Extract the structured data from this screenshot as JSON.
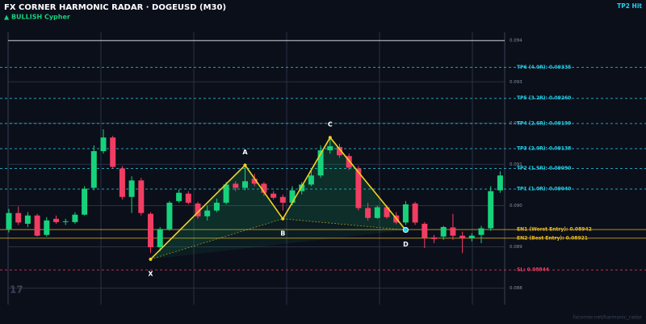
{
  "chart_data": {
    "type": "candlestick",
    "title": "FX CORNER HARMONIC RADAR  ·  DOGEUSD (M30)",
    "subtitle": "▲ BULLISH  Cypher",
    "status": "TP2 Hit",
    "watermark": "17",
    "footer": "fxcorner.net/harmonic_radar",
    "up_color": "#17d27c",
    "down_color": "#f23d63",
    "ohlc": [
      [
        0.08943,
        0.08992,
        0.08935,
        0.08982
      ],
      [
        0.08982,
        0.08998,
        0.08953,
        0.08959
      ],
      [
        0.08956,
        0.08984,
        0.08948,
        0.08976
      ],
      [
        0.08976,
        0.0898,
        0.08925,
        0.08927
      ],
      [
        0.08929,
        0.08972,
        0.08925,
        0.08964
      ],
      [
        0.08968,
        0.08976,
        0.08956,
        0.0896
      ],
      [
        0.0896,
        0.08968,
        0.08953,
        0.08962
      ],
      [
        0.0896,
        0.08984,
        0.08956,
        0.08978
      ],
      [
        0.08978,
        0.09047,
        0.08976,
        0.09041
      ],
      [
        0.09043,
        0.09146,
        0.09037,
        0.09132
      ],
      [
        0.09132,
        0.09185,
        0.09126,
        0.09165
      ],
      [
        0.09165,
        0.09169,
        0.0909,
        0.09094
      ],
      [
        0.0909,
        0.09096,
        0.09015,
        0.09021
      ],
      [
        0.09021,
        0.09071,
        0.08982,
        0.09061
      ],
      [
        0.09061,
        0.09067,
        0.08976,
        0.08982
      ],
      [
        0.0898,
        0.08984,
        0.08885,
        0.08899
      ],
      [
        0.08899,
        0.08948,
        0.08889,
        0.08943
      ],
      [
        0.08943,
        0.09011,
        0.08939,
        0.09007
      ],
      [
        0.09011,
        0.09039,
        0.09007,
        0.09031
      ],
      [
        0.09029,
        0.09035,
        0.09003,
        0.09007
      ],
      [
        0.09005,
        0.09009,
        0.08968,
        0.08974
      ],
      [
        0.08974,
        0.09,
        0.08964,
        0.08988
      ],
      [
        0.08988,
        0.09017,
        0.08984,
        0.09007
      ],
      [
        0.09007,
        0.09057,
        0.09003,
        0.09051
      ],
      [
        0.09053,
        0.09059,
        0.09035,
        0.09043
      ],
      [
        0.09043,
        0.09098,
        0.09037,
        0.09059
      ],
      [
        0.09065,
        0.09077,
        0.09047,
        0.09053
      ],
      [
        0.09053,
        0.09057,
        0.09023,
        0.09031
      ],
      [
        0.09029,
        0.09035,
        0.09015,
        0.09019
      ],
      [
        0.09021,
        0.09027,
        0.08988,
        0.09007
      ],
      [
        0.09007,
        0.09047,
        0.09001,
        0.09037
      ],
      [
        0.09035,
        0.09057,
        0.09027,
        0.09051
      ],
      [
        0.09051,
        0.09086,
        0.09047,
        0.09073
      ],
      [
        0.09073,
        0.09146,
        0.09067,
        0.09134
      ],
      [
        0.09134,
        0.09165,
        0.09126,
        0.09144
      ],
      [
        0.09142,
        0.0915,
        0.09116,
        0.09122
      ],
      [
        0.0912,
        0.09126,
        0.09086,
        0.09092
      ],
      [
        0.0909,
        0.09096,
        0.08988,
        0.08994
      ],
      [
        0.08994,
        0.09007,
        0.08964,
        0.0897
      ],
      [
        0.0897,
        0.09,
        0.08968,
        0.08996
      ],
      [
        0.08996,
        0.09001,
        0.08968,
        0.08972
      ],
      [
        0.08976,
        0.08984,
        0.08955,
        0.08959
      ],
      [
        0.08959,
        0.09011,
        0.08953,
        0.09003
      ],
      [
        0.09005,
        0.09009,
        0.08953,
        0.08959
      ],
      [
        0.08956,
        0.0896,
        0.08897,
        0.08921
      ],
      [
        0.08923,
        0.08929,
        0.08909,
        0.08919
      ],
      [
        0.08925,
        0.08951,
        0.08917,
        0.08948
      ],
      [
        0.08947,
        0.0898,
        0.08917,
        0.08927
      ],
      [
        0.08927,
        0.08937,
        0.08885,
        0.08921
      ],
      [
        0.08921,
        0.08933,
        0.08913,
        0.08927
      ],
      [
        0.08929,
        0.08951,
        0.08909,
        0.08945
      ],
      [
        0.08945,
        0.09047,
        0.08939,
        0.09035
      ],
      [
        0.09037,
        0.09083,
        0.09031,
        0.09073
      ]
    ],
    "pattern": [
      {
        "label": "X",
        "bar": 15,
        "value": 0.0887
      },
      {
        "label": "A",
        "bar": 25,
        "value": 0.09098
      },
      {
        "label": "B",
        "bar": 29,
        "value": 0.08968
      },
      {
        "label": "C",
        "bar": 34,
        "value": 0.09165
      },
      {
        "label": "D",
        "bar": 42,
        "value": 0.08941
      }
    ],
    "pattern_color": "#f5d020",
    "levels": [
      {
        "label": "TP6 (4.0R): 0.09335",
        "value": 0.09335,
        "color": "#22d3ee",
        "style": "dashed"
      },
      {
        "label": "TP5 (3.2R): 0.09260",
        "value": 0.0926,
        "color": "#22d3ee",
        "style": "dashed"
      },
      {
        "label": "TP4 (2.6R): 0.09199",
        "value": 0.09199,
        "color": "#22d3ee",
        "style": "dashed"
      },
      {
        "label": "TP3 (2.0R): 0.09138",
        "value": 0.09138,
        "color": "#22d3ee",
        "style": "dashed"
      },
      {
        "label": "TP2 (1.5R): 0.09090",
        "value": 0.0909,
        "color": "#22d3ee",
        "style": "dashed"
      },
      {
        "label": "TP1 (1.0R): 0.09040",
        "value": 0.0904,
        "color": "#22d3ee",
        "style": "dashed"
      },
      {
        "label": "EN1 (Worst Entry): 0.08942",
        "value": 0.08942,
        "color": "#e8b923",
        "style": "solid"
      },
      {
        "label": "EN2 (Best Entry): 0.08921",
        "value": 0.08921,
        "color": "#e8b923",
        "style": "solid"
      },
      {
        "label": "SL: 0.08844",
        "value": 0.08844,
        "color": "#f23d63",
        "style": "dashed"
      }
    ],
    "ylim": [
      0.0876,
      0.0942
    ],
    "yticks": [
      0.094,
      0.093,
      0.092,
      0.091,
      {
        "value": 0.09,
        "label": "0.090"
      },
      0.089,
      0.088
    ],
    "grid": true
  }
}
